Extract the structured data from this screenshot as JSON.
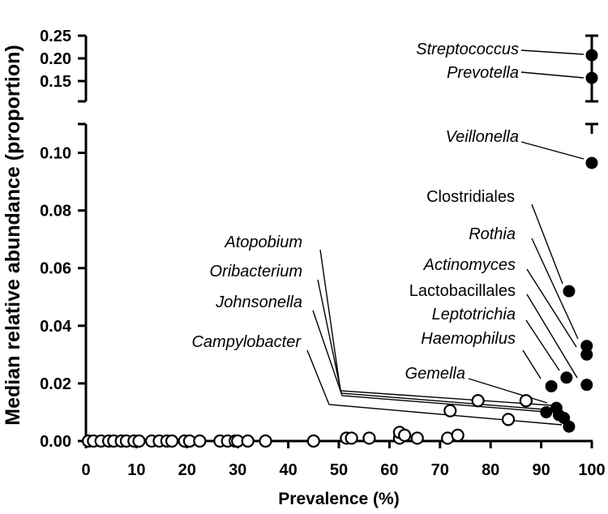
{
  "chart_data": {
    "type": "scatter",
    "title": "",
    "xlabel": "Prevalence (%)",
    "ylabel": "Median relative abundance (proportion)",
    "xlim": [
      0,
      100
    ],
    "x_ticks": [
      "0",
      "10",
      "20",
      "30",
      "40",
      "50",
      "60",
      "70",
      "80",
      "90",
      "100"
    ],
    "x_tick_values": [
      0,
      10,
      20,
      30,
      40,
      50,
      60,
      70,
      80,
      90,
      100
    ],
    "y_axis_break": true,
    "lower_ylim": [
      0,
      0.11
    ],
    "lower_y_ticks": [
      "0.00",
      "0.02",
      "0.04",
      "0.06",
      "0.08",
      "0.10"
    ],
    "lower_y_tick_values": [
      0,
      0.02,
      0.04,
      0.06,
      0.08,
      0.1
    ],
    "upper_ylim": [
      0.1,
      0.26
    ],
    "upper_y_ticks": [
      "0.15",
      "0.20",
      "0.25"
    ],
    "upper_y_tick_values": [
      0.15,
      0.2,
      0.25
    ],
    "grid": false,
    "series": [
      {
        "name": "open",
        "marker": "open-circle",
        "points": [
          [
            0.5,
            0
          ],
          [
            1.5,
            0
          ],
          [
            3,
            0
          ],
          [
            4.5,
            0
          ],
          [
            5.5,
            0
          ],
          [
            7,
            0
          ],
          [
            8,
            0
          ],
          [
            9.5,
            0
          ],
          [
            10.5,
            0
          ],
          [
            13,
            0
          ],
          [
            14.5,
            0
          ],
          [
            16,
            0
          ],
          [
            17,
            0
          ],
          [
            19.5,
            0
          ],
          [
            20.5,
            0
          ],
          [
            22.5,
            0
          ],
          [
            26.5,
            0
          ],
          [
            28,
            0
          ],
          [
            29.5,
            0
          ],
          [
            30,
            0
          ],
          [
            32,
            0
          ],
          [
            35.5,
            0
          ],
          [
            45,
            0
          ],
          [
            51.5,
            0.001
          ],
          [
            52.5,
            0.001
          ],
          [
            56,
            0.001
          ],
          [
            62,
            0.001
          ],
          [
            62,
            0.003
          ],
          [
            63,
            0.002
          ],
          [
            65.5,
            0.001
          ],
          [
            71.5,
            0.001
          ],
          [
            73.5,
            0.002
          ],
          [
            72,
            0.0105
          ],
          [
            77.5,
            0.014
          ],
          [
            83.5,
            0.0075
          ],
          [
            87,
            0.014
          ]
        ]
      },
      {
        "name": "filled",
        "marker": "filled-circle",
        "points": [
          [
            91,
            0.01
          ],
          [
            92,
            0.019
          ],
          [
            93,
            0.0115
          ],
          [
            93.5,
            0.009
          ],
          [
            94.5,
            0.008
          ],
          [
            95,
            0.022
          ],
          [
            95.5,
            0.005
          ],
          [
            95.5,
            0.052
          ],
          [
            99,
            0.03
          ],
          [
            99,
            0.033
          ],
          [
            99,
            0.0195
          ],
          [
            100,
            0.0965
          ]
        ]
      },
      {
        "name": "filled-upper",
        "marker": "filled-circle",
        "points": [
          [
            100,
            0.207
          ],
          [
            100,
            0.157
          ]
        ]
      }
    ],
    "annotations": [
      {
        "text": "Streptococcus",
        "italic": true,
        "point": [
          100,
          0.207
        ]
      },
      {
        "text": "Prevotella",
        "italic": true,
        "point": [
          100,
          0.157
        ]
      },
      {
        "text": "Veillonella",
        "italic": true,
        "point": [
          100,
          0.0965
        ]
      },
      {
        "text": "Clostridiales",
        "italic": false,
        "point": [
          95.5,
          0.052
        ]
      },
      {
        "text": "Rothia",
        "italic": true,
        "point": [
          99,
          0.033
        ]
      },
      {
        "text": "Actinomyces",
        "italic": true,
        "point": [
          99,
          0.03
        ]
      },
      {
        "text": "Lactobacillales",
        "italic": false,
        "point": [
          99,
          0.0195
        ]
      },
      {
        "text": "Leptotrichia",
        "italic": true,
        "point": [
          95,
          0.022
        ]
      },
      {
        "text": "Haemophilus",
        "italic": true,
        "point": [
          92,
          0.019
        ]
      },
      {
        "text": "Gemella",
        "italic": true,
        "point": [
          93,
          0.0115
        ]
      },
      {
        "text": "Atopobium",
        "italic": true,
        "point": [
          94.5,
          0.008
        ]
      },
      {
        "text": "Oribacterium",
        "italic": true,
        "point": [
          93.5,
          0.009
        ]
      },
      {
        "text": "Johnsonella",
        "italic": true,
        "point": [
          91,
          0.01
        ]
      },
      {
        "text": "Campylobacter",
        "italic": true,
        "point": [
          95.5,
          0.005
        ]
      }
    ]
  }
}
